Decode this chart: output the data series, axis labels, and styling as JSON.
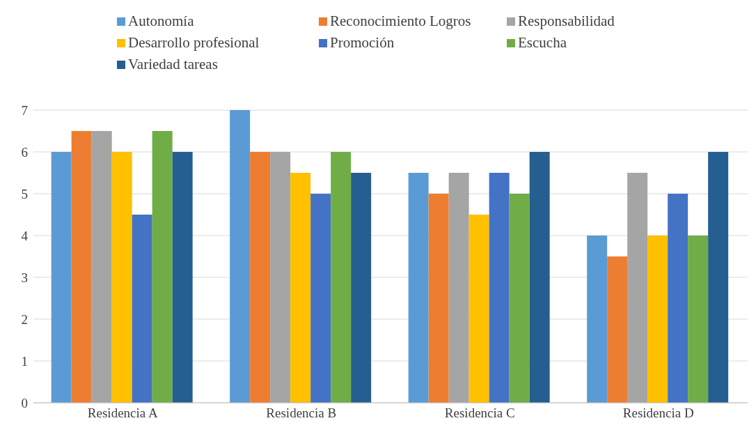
{
  "chart_data": {
    "type": "bar",
    "categories": [
      "Residencia A",
      "Residencia B",
      "Residencia C",
      "Residencia D"
    ],
    "series": [
      {
        "name": "Autonomía",
        "color": "#5b9bd5",
        "values": [
          6,
          7,
          5.5,
          4
        ]
      },
      {
        "name": "Reconocimiento Logros",
        "color": "#ed7d31",
        "values": [
          6.5,
          6,
          5,
          3.5
        ]
      },
      {
        "name": "Responsabilidad",
        "color": "#a5a5a5",
        "values": [
          6.5,
          6,
          5.5,
          5.5
        ]
      },
      {
        "name": "Desarrollo profesional",
        "color": "#ffc000",
        "values": [
          6,
          5.5,
          4.5,
          4
        ]
      },
      {
        "name": "Promoción",
        "color": "#4472c4",
        "values": [
          4.5,
          5,
          5.5,
          5
        ]
      },
      {
        "name": "Escucha",
        "color": "#70ad47",
        "values": [
          6.5,
          6,
          5,
          4
        ]
      },
      {
        "name": "Variedad tareas",
        "color": "#255e91",
        "values": [
          6,
          5.5,
          6,
          6
        ]
      }
    ],
    "ylim": [
      0,
      7
    ],
    "yticks": [
      0,
      1,
      2,
      3,
      4,
      5,
      6,
      7
    ],
    "grid": "y",
    "legend": "top"
  }
}
